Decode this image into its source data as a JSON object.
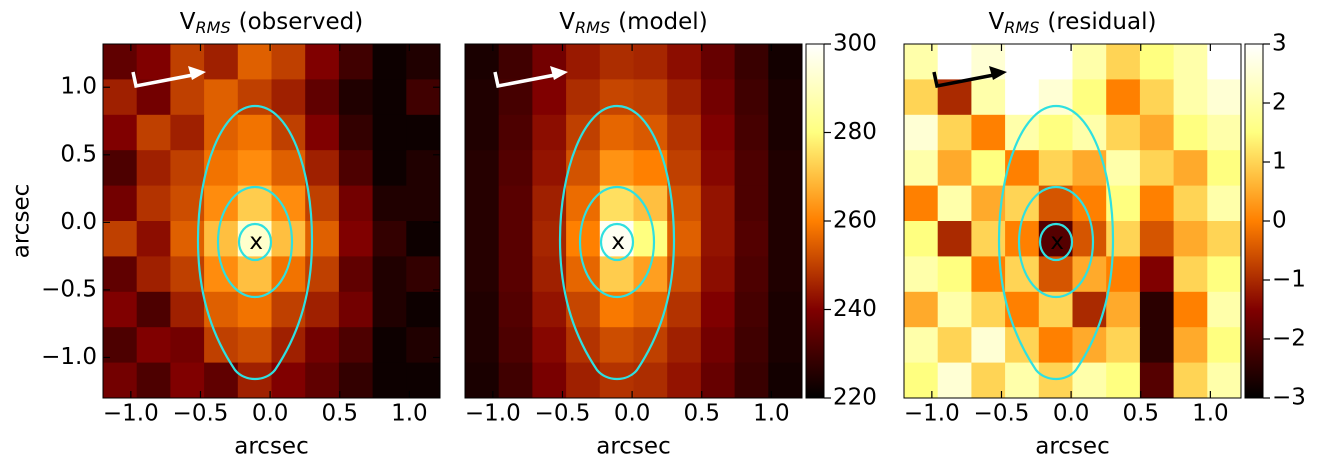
{
  "chart_data": [
    {
      "type": "heatmap",
      "title": "V",
      "title_sub": "RMS",
      "title_suffix": "(observed)",
      "xlabel": "arcsec",
      "ylabel": "arcsec",
      "colormap": "afmhot",
      "xlim": [
        -1.2,
        1.22
      ],
      "ylim": [
        -1.3,
        1.32
      ],
      "zlim": [
        220,
        300
      ],
      "xticks": [
        {
          "value": -1,
          "label": "−1.0"
        },
        {
          "value": -0.5,
          "label": "−0.5"
        },
        {
          "value": 0,
          "label": "0.0"
        },
        0.5,
        {
          "value": 1,
          "label": "1.0"
        }
      ],
      "yticks": [
        {
          "value": -1,
          "label": "−1.0"
        },
        {
          "value": -0.5,
          "label": "−0.5"
        },
        {
          "value": 0,
          "label": "0.0"
        },
        0.5,
        {
          "value": 1,
          "label": "1.0"
        }
      ],
      "marker": {
        "x": -0.1,
        "y": -0.15,
        "label": "x"
      },
      "z": [
        [
          235,
          240,
          250,
          245,
          255,
          250,
          240,
          230,
          222,
          225
        ],
        [
          245,
          238,
          250,
          255,
          250,
          245,
          235,
          225,
          222,
          230
        ],
        [
          240,
          250,
          245,
          255,
          258,
          250,
          240,
          228,
          222,
          222
        ],
        [
          232,
          245,
          250,
          258,
          262,
          255,
          245,
          232,
          222,
          225
        ],
        [
          238,
          248,
          252,
          262,
          272,
          262,
          250,
          238,
          225,
          225
        ],
        [
          250,
          242,
          255,
          270,
          292,
          270,
          255,
          240,
          228,
          222
        ],
        [
          235,
          245,
          250,
          262,
          270,
          258,
          250,
          235,
          225,
          228
        ],
        [
          240,
          232,
          245,
          255,
          258,
          250,
          245,
          238,
          225,
          222
        ],
        [
          232,
          240,
          238,
          250,
          252,
          245,
          238,
          232,
          222,
          225
        ],
        [
          238,
          232,
          240,
          235,
          245,
          240,
          235,
          228,
          222,
          222
        ]
      ]
    },
    {
      "type": "heatmap",
      "title": "V",
      "title_sub": "RMS",
      "title_suffix": "(model)",
      "xlabel": "arcsec",
      "colormap": "afmhot",
      "xlim": [
        -1.2,
        1.22
      ],
      "ylim": [
        -1.3,
        1.32
      ],
      "zlim": [
        220,
        300
      ],
      "xticks": [
        {
          "value": -1,
          "label": "−1.0"
        },
        {
          "value": -0.5,
          "label": "−0.5"
        },
        {
          "value": 0,
          "label": "0.0"
        },
        0.5,
        {
          "value": 1,
          "label": "1.0"
        }
      ],
      "colorbar_ticks": [
        220,
        240,
        260,
        280,
        300
      ],
      "marker": {
        "x": -0.1,
        "y": -0.15,
        "label": "x"
      },
      "z": [
        [
          224,
          230,
          238,
          244,
          247,
          246,
          242,
          236,
          229,
          223
        ],
        [
          225,
          231,
          240,
          247,
          251,
          250,
          245,
          238,
          230,
          224
        ],
        [
          225,
          232,
          242,
          250,
          256,
          254,
          248,
          240,
          231,
          224
        ],
        [
          226,
          233,
          243,
          253,
          263,
          260,
          250,
          241,
          232,
          225
        ],
        [
          226,
          234,
          245,
          257,
          275,
          270,
          253,
          243,
          232,
          225
        ],
        [
          226,
          234,
          246,
          260,
          298,
          280,
          255,
          243,
          233,
          225
        ],
        [
          226,
          234,
          245,
          256,
          272,
          265,
          252,
          242,
          232,
          225
        ],
        [
          225,
          233,
          243,
          251,
          259,
          256,
          248,
          240,
          231,
          224
        ],
        [
          225,
          232,
          241,
          248,
          252,
          250,
          245,
          238,
          230,
          224
        ],
        [
          224,
          230,
          239,
          245,
          248,
          247,
          243,
          236,
          229,
          223
        ]
      ]
    },
    {
      "type": "heatmap",
      "title": "V",
      "title_sub": "RMS",
      "title_suffix": "(residual)",
      "xlabel": "arcsec",
      "colormap": "afmhot",
      "xlim": [
        -1.2,
        1.22
      ],
      "ylim": [
        -1.3,
        1.32
      ],
      "zlim": [
        -3,
        3
      ],
      "xticks": [
        {
          "value": -1,
          "label": "−1.0"
        },
        {
          "value": -0.5,
          "label": "−0.5"
        },
        {
          "value": 0,
          "label": "0.0"
        },
        0.5,
        {
          "value": 1,
          "label": "1.0"
        }
      ],
      "colorbar_ticks": [
        {
          "value": -3,
          "label": "−3"
        },
        {
          "value": -2,
          "label": "−2"
        },
        {
          "value": -1,
          "label": "−1"
        },
        0,
        1,
        2,
        3
      ],
      "marker": {
        "x": -0.1,
        "y": -0.15,
        "label": "x"
      },
      "z": [
        [
          2,
          3,
          2.5,
          3,
          3,
          2,
          1,
          1.5,
          2,
          3
        ],
        [
          1,
          -1,
          2,
          3,
          2.5,
          1.5,
          0,
          1,
          2,
          2.5
        ],
        [
          2.5,
          1,
          0,
          2,
          1.5,
          2,
          1,
          0.5,
          1.5,
          2
        ],
        [
          2,
          0.5,
          1.5,
          0,
          1,
          0.5,
          2,
          1,
          0.5,
          1.5
        ],
        [
          0,
          2,
          0.5,
          1,
          -0.5,
          0,
          1.5,
          0,
          1,
          2
        ],
        [
          1.5,
          -1,
          1,
          0,
          -2,
          -0.5,
          1,
          -0.5,
          0.5,
          1
        ],
        [
          2,
          1.5,
          0,
          1,
          -0.5,
          0.5,
          0,
          -1.5,
          1,
          1.5
        ],
        [
          0.5,
          2,
          1,
          0,
          1,
          -1,
          0.5,
          -2.5,
          0,
          2
        ],
        [
          2,
          1,
          2.5,
          1,
          0,
          0.5,
          1,
          -2.5,
          0.5,
          1.5
        ],
        [
          1.5,
          2.5,
          1,
          2,
          1,
          2,
          1.5,
          -2,
          1,
          2
        ]
      ]
    }
  ]
}
